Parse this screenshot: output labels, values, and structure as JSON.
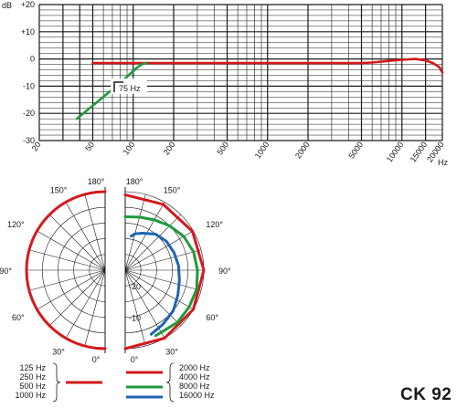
{
  "model": "CK 92",
  "chart_data": [
    {
      "type": "line",
      "title": "",
      "xlabel": "Hz",
      "ylabel": "dB",
      "x_scale": "log",
      "xlim": [
        20,
        20000
      ],
      "ylim": [
        -30,
        20
      ],
      "x_tick_labels": [
        "20",
        "50",
        "100",
        "200",
        "500",
        "1000",
        "2000",
        "5000",
        "10000",
        "15000",
        "20000"
      ],
      "y_tick_labels": [
        "+20",
        "+10",
        "0",
        "-10",
        "-20",
        "-30"
      ],
      "annotation": "75 Hz",
      "series": [
        {
          "color": "#d4191d",
          "points": [
            [
              50,
              -1.5
            ],
            [
              100,
              -1.5
            ],
            [
              200,
              -1.5
            ],
            [
              500,
              -1.5
            ],
            [
              1000,
              -1.5
            ],
            [
              2000,
              -1.5
            ],
            [
              4000,
              -1.5
            ],
            [
              5000,
              -1.5
            ],
            [
              6000,
              -1.3
            ],
            [
              8000,
              -0.7
            ],
            [
              10000,
              -0.3
            ],
            [
              12500,
              0
            ],
            [
              15000,
              -0.5
            ],
            [
              17000,
              -1.5
            ],
            [
              19000,
              -3
            ],
            [
              20000,
              -5
            ]
          ]
        },
        {
          "color": "#1f9a3a",
          "points": [
            [
              38,
              -22
            ],
            [
              45,
              -19
            ],
            [
              55,
              -15.5
            ],
            [
              65,
              -12.5
            ],
            [
              75,
              -10
            ],
            [
              90,
              -6.5
            ],
            [
              105,
              -3.5
            ],
            [
              115,
              -2
            ],
            [
              125,
              -1.5
            ]
          ]
        }
      ]
    },
    {
      "type": "polar",
      "title": "",
      "angle_labels_left": [
        "180°",
        "150°",
        "120°",
        "90°",
        "60°",
        "30°",
        "0°"
      ],
      "angle_labels_right": [
        "180°",
        "150°",
        "120°",
        "90°",
        "60°",
        "30°",
        "0°"
      ],
      "radial_labels": [
        "-20",
        "-10"
      ],
      "rlim_db": [
        -25,
        0
      ],
      "legend_left": {
        "frequencies": [
          "125 Hz",
          "250 Hz",
          "500 Hz",
          "1000 Hz"
        ],
        "color": "#d4191d"
      },
      "legend_right": [
        {
          "frequency": "2000 Hz",
          "color": "#d4191d"
        },
        {
          "frequency": "4000 Hz",
          "color": "#d4191d"
        },
        {
          "frequency": "8000 Hz",
          "color": "#1f9a3a"
        },
        {
          "frequency": "16000 Hz",
          "color": "#1f64b4"
        }
      ],
      "series": [
        {
          "side": "left",
          "label": "125 Hz / 250 Hz / 500 Hz / 1000 Hz",
          "color": "#d4191d",
          "angles": [
            0,
            30,
            60,
            90,
            120,
            150,
            180
          ],
          "db": [
            0,
            0,
            0,
            0,
            0,
            0,
            0
          ]
        },
        {
          "side": "right",
          "label": "2000 Hz / 4000 Hz",
          "color": "#d4191d",
          "angles": [
            0,
            30,
            60,
            90,
            120,
            150,
            180
          ],
          "db": [
            0,
            0,
            0,
            0,
            -0.3,
            -0.8,
            -1
          ]
        },
        {
          "side": "right",
          "label": "8000 Hz",
          "color": "#1f9a3a",
          "angles": [
            25,
            45,
            60,
            75,
            90,
            105,
            120,
            135,
            150,
            165,
            180
          ],
          "db": [
            -2,
            -1.5,
            -1.5,
            -1.5,
            -2,
            -2.5,
            -3.5,
            -5,
            -6.5,
            -7.5,
            -8
          ]
        },
        {
          "side": "right",
          "label": "16000 Hz",
          "color": "#1f64b4",
          "angles": [
            22,
            35,
            50,
            65,
            80,
            95,
            110,
            125,
            140,
            155,
            165,
            170
          ],
          "db": [
            -3,
            -4,
            -5,
            -6.5,
            -7.5,
            -8,
            -8.5,
            -9,
            -10,
            -12,
            -13,
            -14
          ]
        }
      ]
    }
  ]
}
